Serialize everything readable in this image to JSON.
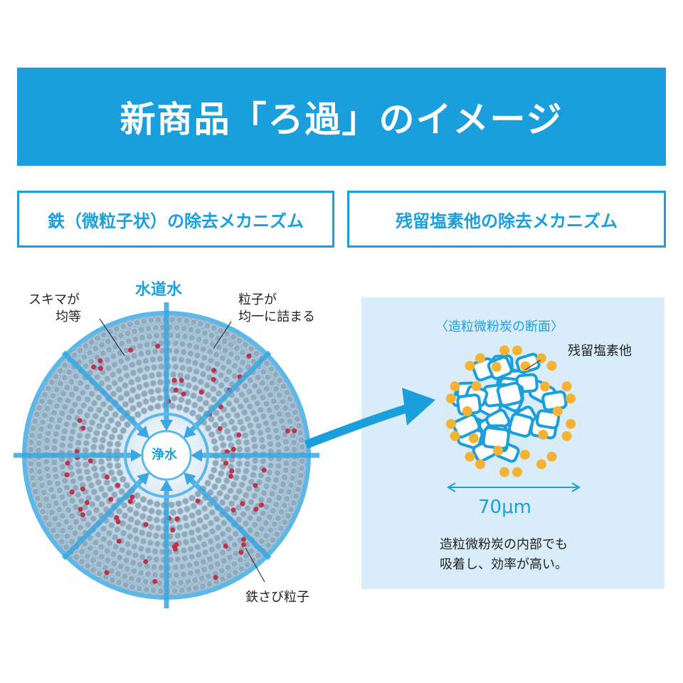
{
  "title": "新商品「ろ過」のイメージ",
  "sections": [
    {
      "label": "鉄（微粒子状）の除去メカニズム"
    },
    {
      "label": "残留塩素他の除去メカニズム"
    }
  ],
  "filter_diagram": {
    "inflow_label": "水道水",
    "center_label": "浄水",
    "gap_label": [
      "スキマが",
      "均等"
    ],
    "particle_label": [
      "粒子が",
      "均一に詰まる"
    ],
    "rust_label": "鉄さび粒子"
  },
  "carbon_panel": {
    "heading": "〈造粒微粉炭の断面〉",
    "chlorine_label": "残留塩素他",
    "scale": "70μm",
    "note": [
      "造粒微粉炭の内部でも",
      "吸着し、効率が高い。"
    ]
  },
  "colors": {
    "accent": "#1a9fdc",
    "panel": "#d9ecf9",
    "rust": "#c0314a",
    "chlorine": "#f5b335"
  }
}
